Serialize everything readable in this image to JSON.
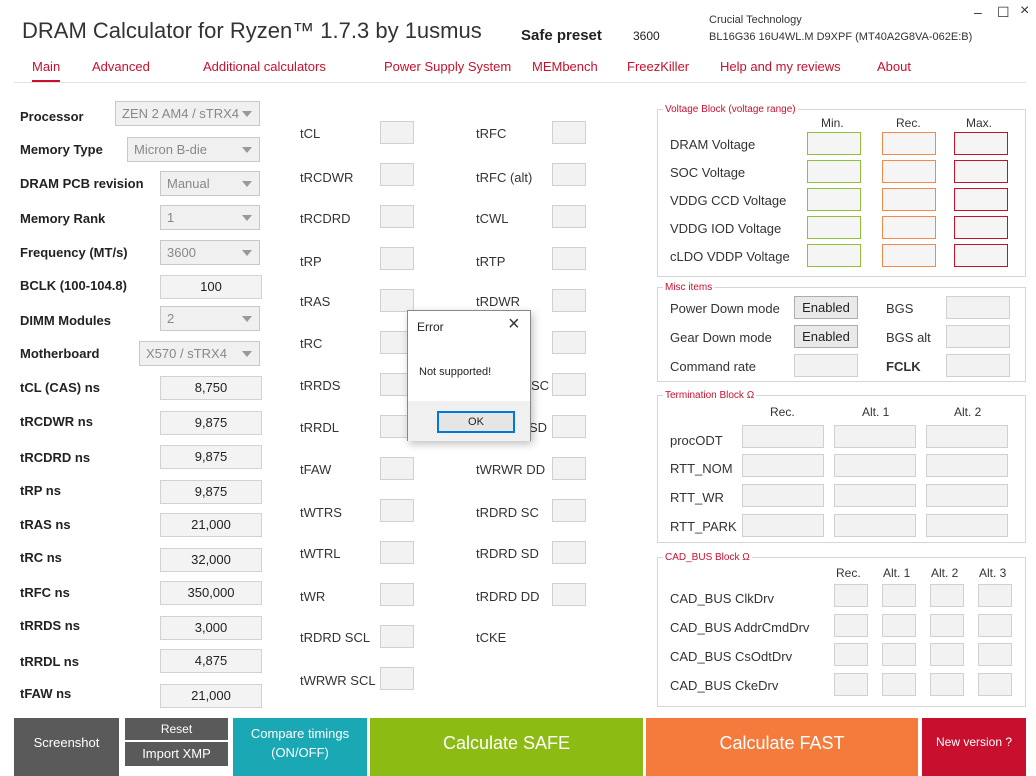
{
  "app": {
    "title": "DRAM Calculator for Ryzen™ 1.7.3 by 1usmus",
    "preset_label": "Safe preset",
    "preset_value": "3600",
    "memory_info_line1": "Crucial Technology",
    "memory_info_line2": "BL16G36 16U4WL.M D9XPF (MT40A2G8VA-062E:B)",
    "minimize": "–",
    "maximize": "☐",
    "close": "×"
  },
  "tabs": [
    "Main",
    "Advanced",
    "Additional calculators",
    "Power Supply System",
    "MEMbench",
    "FreezKiller",
    "Help and my reviews",
    "About"
  ],
  "settings": {
    "processor": {
      "label": "Processor",
      "value": "ZEN 2 AM4 / sTRX4"
    },
    "memory_type": {
      "label": "Memory Type",
      "value": "Micron B-die"
    },
    "pcb_revision": {
      "label": "DRAM PCB revision",
      "value": "Manual"
    },
    "memory_rank": {
      "label": "Memory Rank",
      "value": "1"
    },
    "frequency": {
      "label": "Frequency (MT/s)",
      "value": "3600"
    },
    "bclk": {
      "label": "BCLK (100-104.8)",
      "value": "100"
    },
    "dimm_modules": {
      "label": "DIMM Modules",
      "value": "2"
    },
    "motherboard": {
      "label": "Motherboard",
      "value": "X570 / sTRX4"
    }
  },
  "ns_values": [
    {
      "label": "tCL (CAS) ns",
      "value": "8,750"
    },
    {
      "label": "tRCDWR ns",
      "value": "9,875"
    },
    {
      "label": "tRCDRD ns",
      "value": "9,875"
    },
    {
      "label": "tRP ns",
      "value": "9,875"
    },
    {
      "label": "tRAS ns",
      "value": "21,000"
    },
    {
      "label": "tRC ns",
      "value": "32,000"
    },
    {
      "label": "tRFC ns",
      "value": "350,000"
    },
    {
      "label": "tRRDS ns",
      "value": "3,000"
    },
    {
      "label": "tRRDL ns",
      "value": "4,875"
    },
    {
      "label": "tFAW ns",
      "value": "21,000"
    }
  ],
  "timings_col1": [
    "tCL",
    "tRCDWR",
    "tRCDRD",
    "tRP",
    "tRAS",
    "tRC",
    "tRRDS",
    "tRRDL",
    "tFAW",
    "tWTRS",
    "tWTRL",
    "tWR",
    "tRDRD SCL",
    "tWRWR SCL"
  ],
  "timings_col2": [
    "tRFC",
    "tRFC (alt)",
    "tCWL",
    "tRTP",
    "tRDWR",
    "",
    "",
    "SD",
    "tWRWR DD",
    "tRDRD SC",
    "tRDRD SD",
    "tRDRD DD",
    "tCKE"
  ],
  "timings_col2_partial": "SC",
  "voltage_block": {
    "title": "Voltage Block (voltage range)",
    "headers": [
      "Min.",
      "Rec.",
      "Max."
    ],
    "rows": [
      "DRAM Voltage",
      "SOC Voltage",
      "VDDG  CCD Voltage",
      "VDDG  IOD Voltage",
      "cLDO VDDP Voltage"
    ]
  },
  "misc": {
    "title": "Misc items",
    "power_down": {
      "label": "Power Down mode",
      "value": "Enabled"
    },
    "gear_down": {
      "label": "Gear Down mode",
      "value": "Enabled"
    },
    "command_rate": {
      "label": "Command rate"
    },
    "bgs": "BGS",
    "bgs_alt": "BGS alt",
    "fclk": "FCLK"
  },
  "termination": {
    "title": "Termination Block Ω",
    "headers": [
      "Rec.",
      "Alt. 1",
      "Alt. 2"
    ],
    "rows": [
      "procODT",
      "RTT_NOM",
      "RTT_WR",
      "RTT_PARK"
    ]
  },
  "cad_bus": {
    "title": "CAD_BUS Block Ω",
    "headers": [
      "Rec.",
      "Alt. 1",
      "Alt. 2",
      "Alt. 3"
    ],
    "rows": [
      "CAD_BUS ClkDrv",
      "CAD_BUS AddrCmdDrv",
      "CAD_BUS CsOdtDrv",
      "CAD_BUS CkeDrv"
    ]
  },
  "bottom_buttons": {
    "screenshot": "Screenshot",
    "reset": "Reset",
    "import_xmp": "Import XMP",
    "compare_line1": "Compare timings",
    "compare_line2": "(ON/OFF)",
    "calc_safe": "Calculate SAFE",
    "calc_fast": "Calculate FAST",
    "new_version": "New version ?"
  },
  "dialog": {
    "title": "Error",
    "message": "Not supported!",
    "ok": "OK",
    "close": "×"
  },
  "colors": {
    "accent": "#c8102e",
    "safe": "#8cbc14",
    "fast": "#f47b3c",
    "teal": "#1aa8b4",
    "dark": "#5a5a5a",
    "red": "#c8102e"
  }
}
